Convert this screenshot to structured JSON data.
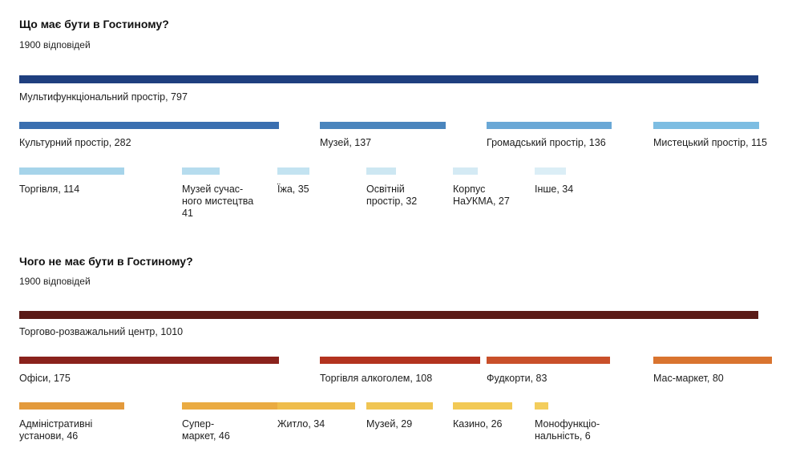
{
  "chart_data": [
    {
      "type": "bar",
      "title": "Що має бути в Гостиному?",
      "subtitle": "1900 відповідей",
      "categories": [
        "Мультифункціональний простір",
        "Культурний простір",
        "Музей",
        "Громадський простір",
        "Мистецький простір",
        "Торгівля",
        "Музей сучасного мистецтва",
        "Їжа",
        "Освітній простір",
        "Корпус НаУКМА",
        "Інше"
      ],
      "values": [
        797,
        282,
        137,
        136,
        115,
        114,
        41,
        35,
        32,
        27,
        34
      ],
      "labels": [
        "Мультифункціональний простір, 797",
        "Культурний простір, 282",
        "Музей, 137",
        "Громадський простір, 136",
        "Мистецький простір, 115",
        "Торгівля, 114",
        "Музей сучас-\nного мистецтва\n41",
        "Їжа, 35",
        "Освітній\nпростір, 32",
        "Корпус\nНаУКМА, 27",
        "Інше, 34"
      ],
      "colors": [
        "#1f3f7f",
        "#3a6fb0",
        "#4a85bd",
        "#6aa8d6",
        "#7dbde2",
        "#a6d4ea",
        "#b6dcee",
        "#c3e3f1",
        "#cde7f2",
        "#d4eaf4",
        "#dbeef6"
      ]
    },
    {
      "type": "bar",
      "title": "Чого не має бути в Гостиному?",
      "subtitle": "1900 відповідей",
      "categories": [
        "Торгово-розважальний центр",
        "Офіси",
        "Торгівля алкоголем",
        "Фудкорти",
        "Мас-маркет",
        "Адміністративні установи",
        "Супер-маркет",
        "Житло",
        "Музей",
        "Казино",
        "Монофункціональність"
      ],
      "values": [
        1010,
        175,
        108,
        83,
        80,
        46,
        46,
        34,
        29,
        26,
        6
      ],
      "labels": [
        "Торгово-розважальний центр, 1010",
        "Офіси, 175",
        "Торгівля алкоголем, 108",
        "Фудкорти, 83",
        "Мас-маркет, 80",
        "Адміністративні\nустанови, 46",
        "Супер-\nмаркет, 46",
        "Житло, 34",
        "Музей, 29",
        "Казино, 26",
        "Монофункціо-\nнальність, 6"
      ],
      "colors": [
        "#5a1a16",
        "#8a221c",
        "#b3331f",
        "#c9502a",
        "#d9742f",
        "#e39a3c",
        "#eaab42",
        "#efbd4c",
        "#f0c553",
        "#f2c955",
        "#f3cd5c"
      ]
    }
  ]
}
